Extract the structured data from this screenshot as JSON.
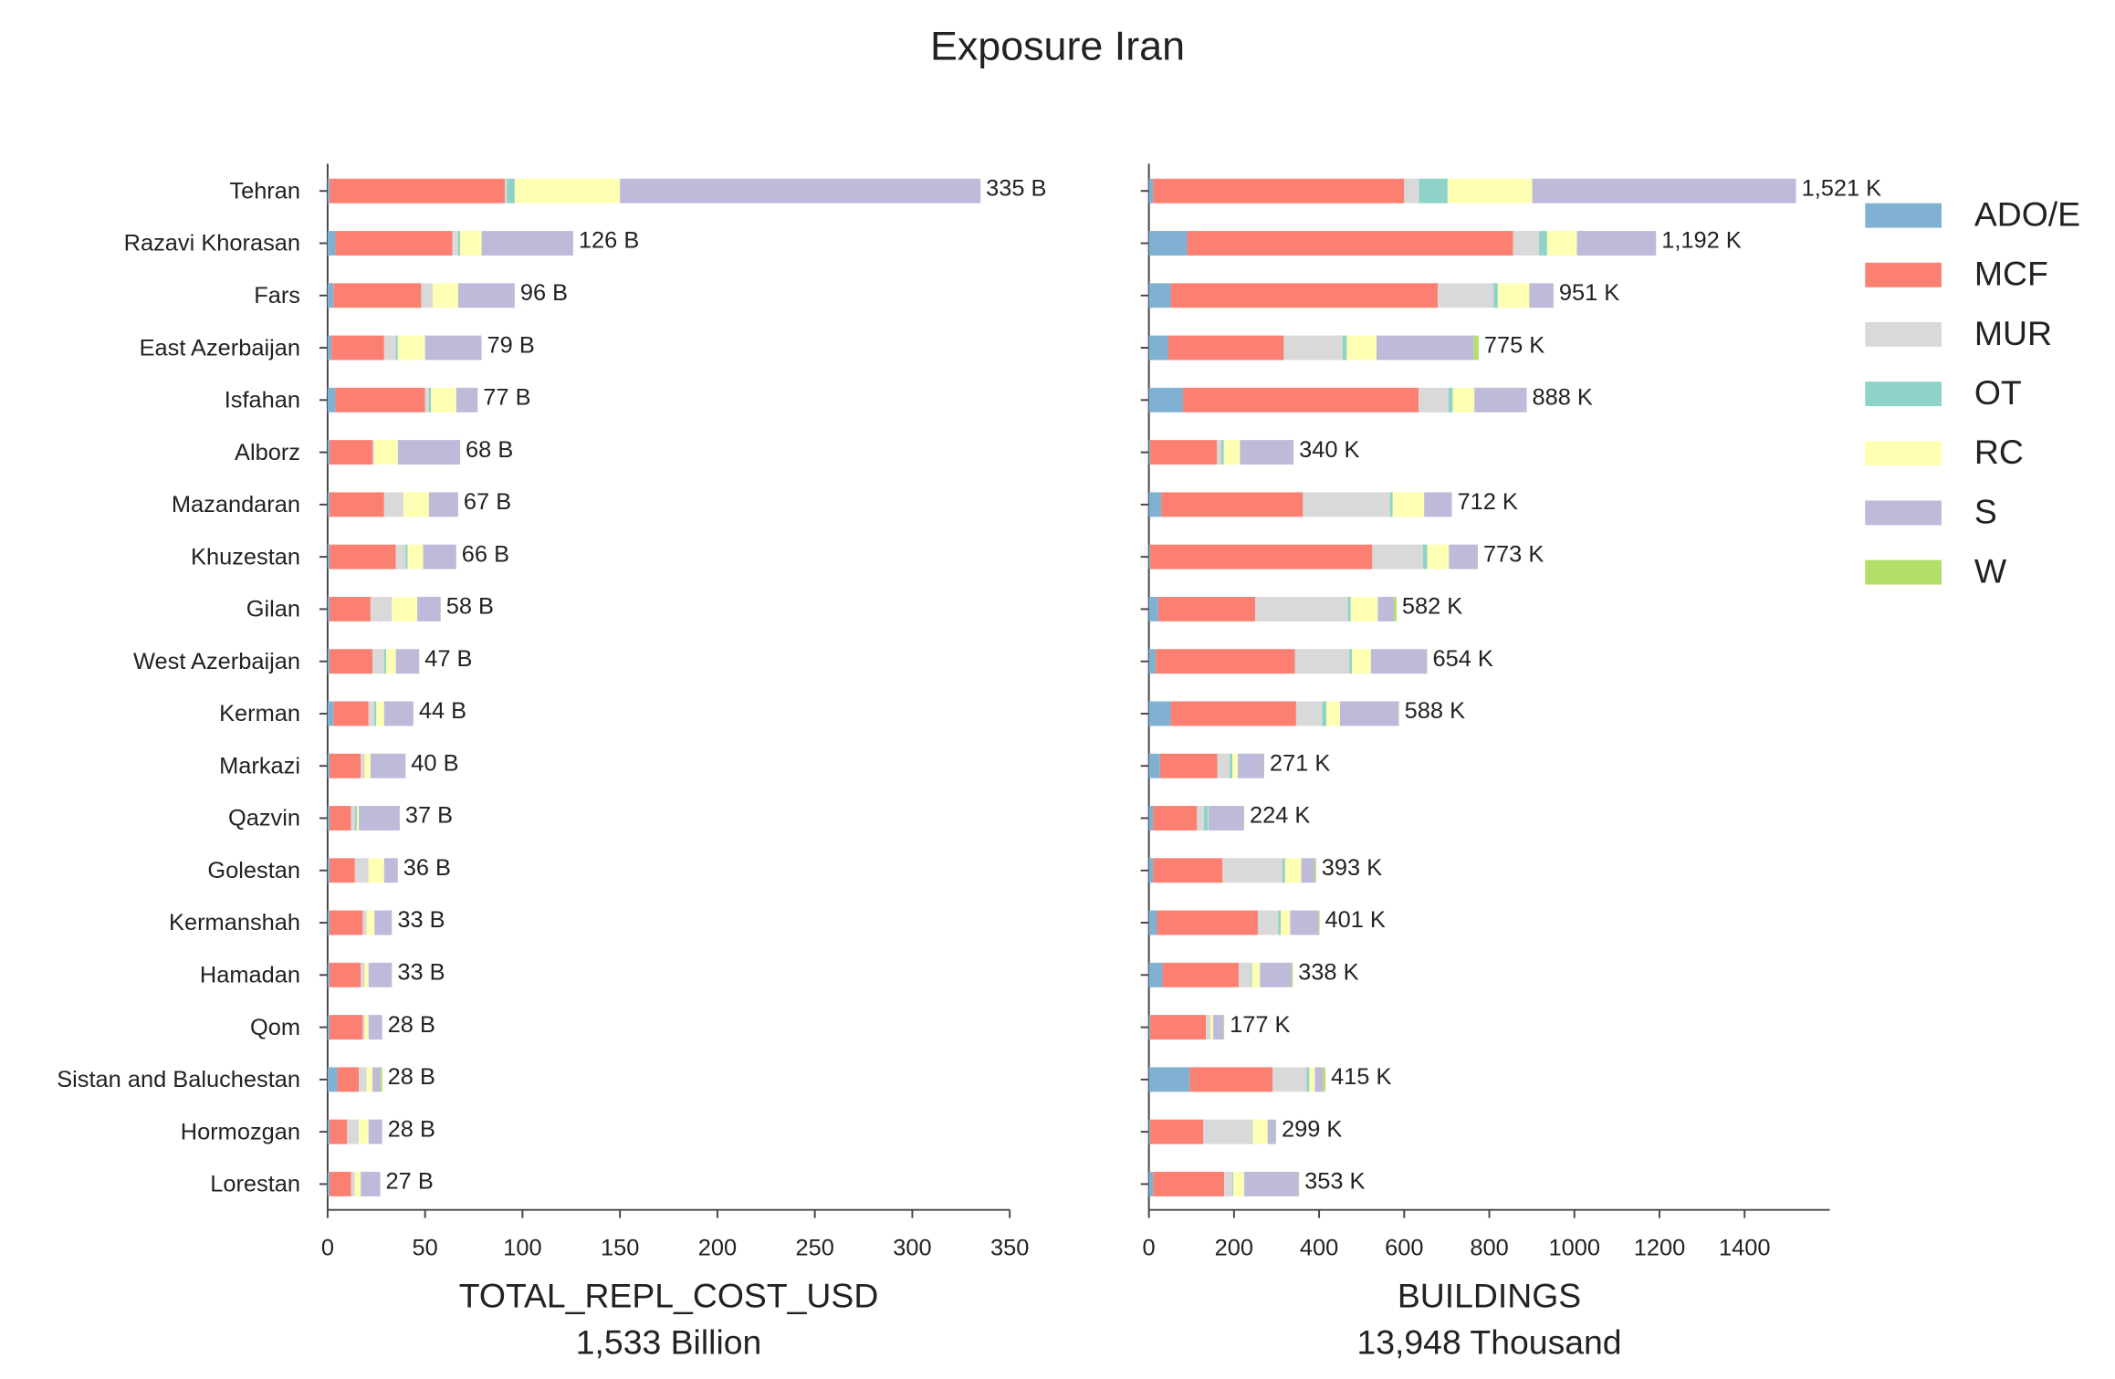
{
  "title": "Exposure Iran",
  "chart_data": [
    {
      "type": "bar",
      "orientation": "horizontal",
      "stacked": true,
      "xlabel": [
        "TOTAL_REPL_COST_USD",
        "1,533 Billion"
      ],
      "categories": [
        "Tehran",
        "Razavi Khorasan",
        "Fars",
        "East Azerbaijan",
        "Isfahan",
        "Alborz",
        "Mazandaran",
        "Khuzestan",
        "Gilan",
        "West Azerbaijan",
        "Kerman",
        "Markazi",
        "Qazvin",
        "Golestan",
        "Kermanshah",
        "Hamadan",
        "Qom",
        "Sistan and Baluchestan",
        "Hormozgan",
        "Lorestan"
      ],
      "series": [
        {
          "name": "ADO/E",
          "color": "#80b1d3",
          "values": [
            1,
            4,
            3,
            2,
            4,
            1,
            1,
            1,
            1,
            1,
            3,
            1,
            1,
            1,
            1,
            1,
            1,
            5,
            1,
            1
          ]
        },
        {
          "name": "MCF",
          "color": "#fb8072",
          "values": [
            90,
            60,
            45,
            27,
            46,
            22,
            28,
            34,
            21,
            22,
            18,
            16,
            11,
            13,
            17,
            16,
            17,
            11,
            9,
            11
          ]
        },
        {
          "name": "MUR",
          "color": "#d9d9d9",
          "values": [
            1,
            3,
            6,
            6,
            2,
            1,
            10,
            5,
            11,
            6,
            3,
            2,
            2,
            7,
            2,
            2,
            1,
            4,
            6,
            2
          ]
        },
        {
          "name": "OT",
          "color": "#8dd3c7",
          "values": [
            4,
            1,
            0,
            1,
            1,
            0,
            0,
            1,
            0,
            1,
            1,
            0,
            1,
            0,
            0,
            0,
            0,
            0,
            0,
            0
          ]
        },
        {
          "name": "RC",
          "color": "#ffffb3",
          "values": [
            54,
            11,
            13,
            14,
            13,
            12,
            13,
            8,
            13,
            5,
            4,
            3,
            1,
            8,
            4,
            2,
            2,
            3,
            5,
            3
          ]
        },
        {
          "name": "S",
          "color": "#bebada",
          "values": [
            185,
            47,
            29,
            29,
            11,
            32,
            15,
            17,
            12,
            12,
            15,
            18,
            21,
            7,
            9,
            12,
            7,
            4,
            7,
            10
          ]
        },
        {
          "name": "W",
          "color": "#b3de69",
          "values": [
            0,
            0,
            0,
            0,
            0,
            0,
            0,
            0,
            0,
            0,
            0,
            0,
            0,
            0,
            0,
            0,
            0,
            1,
            0,
            0
          ]
        }
      ],
      "totals": {
        "values": [
          335,
          126,
          96,
          79,
          77,
          68,
          67,
          66,
          58,
          47,
          44,
          40,
          37,
          36,
          33,
          33,
          28,
          28,
          28,
          27
        ],
        "value_labels": [
          "335 B",
          "126 B",
          "96 B",
          "79 B",
          "77 B",
          "68 B",
          "67 B",
          "66 B",
          "58 B",
          "47 B",
          "44 B",
          "40 B",
          "37 B",
          "36 B",
          "33 B",
          "33 B",
          "28 B",
          "28 B",
          "28 B",
          "27 B"
        ]
      },
      "xlim": [
        0,
        350
      ],
      "xticks": [
        0,
        50,
        100,
        150,
        200,
        250,
        300,
        350
      ]
    },
    {
      "type": "bar",
      "orientation": "horizontal",
      "stacked": true,
      "xlabel": [
        "BUILDINGS",
        "13,948 Thousand"
      ],
      "legend": "outside right",
      "series": [
        {
          "name": "ADO/E",
          "color": "#80b1d3",
          "values": [
            10,
            90,
            51,
            45,
            80,
            3,
            29,
            3,
            22,
            16,
            51,
            26,
            10,
            10,
            19,
            32,
            3,
            96,
            3,
            10
          ]
        },
        {
          "name": "MCF",
          "color": "#fb8072",
          "values": [
            590,
            766,
            628,
            272,
            554,
            157,
            333,
            522,
            228,
            327,
            295,
            135,
            103,
            163,
            237,
            179,
            131,
            195,
            125,
            167
          ]
        },
        {
          "name": "MUR",
          "color": "#d9d9d9",
          "values": [
            35,
            61,
            131,
            138,
            70,
            10,
            205,
            119,
            218,
            128,
            61,
            29,
            16,
            141,
            48,
            29,
            10,
            80,
            115,
            19
          ]
        },
        {
          "name": "OT",
          "color": "#8dd3c7",
          "values": [
            67,
            19,
            10,
            10,
            10,
            6,
            6,
            10,
            6,
            6,
            10,
            6,
            10,
            6,
            6,
            2,
            1,
            6,
            1,
            2
          ]
        },
        {
          "name": "RC",
          "color": "#ffffb3",
          "values": [
            199,
            70,
            74,
            70,
            51,
            38,
            74,
            51,
            64,
            45,
            32,
            13,
            1,
            38,
            22,
            19,
            6,
            13,
            35,
            26
          ]
        },
        {
          "name": "S",
          "color": "#bebada",
          "values": [
            620,
            186,
            57,
            228,
            123,
            126,
            65,
            68,
            38,
            131,
            138,
            61,
            83,
            32,
            67,
            74,
            25,
            19,
            19,
            128
          ]
        },
        {
          "name": "W",
          "color": "#b3de69",
          "values": [
            0,
            0,
            0,
            12,
            0,
            0,
            0,
            0,
            6,
            1,
            1,
            1,
            1,
            3,
            2,
            3,
            1,
            6,
            1,
            1
          ]
        }
      ],
      "totals": {
        "values": [
          1521,
          1192,
          951,
          775,
          888,
          340,
          712,
          773,
          582,
          654,
          588,
          271,
          224,
          393,
          401,
          338,
          177,
          415,
          299,
          353
        ],
        "value_labels": [
          "1,521 K",
          "1,192 K",
          "951 K",
          "775 K",
          "888 K",
          "340 K",
          "712 K",
          "773 K",
          "582 K",
          "654 K",
          "588 K",
          "271 K",
          "224 K",
          "393 K",
          "401 K",
          "338 K",
          "177 K",
          "415 K",
          "299 K",
          "353 K"
        ]
      },
      "xlim": [
        0,
        1600
      ],
      "xticks": [
        0,
        200,
        400,
        600,
        800,
        1000,
        1200,
        1400
      ]
    }
  ]
}
